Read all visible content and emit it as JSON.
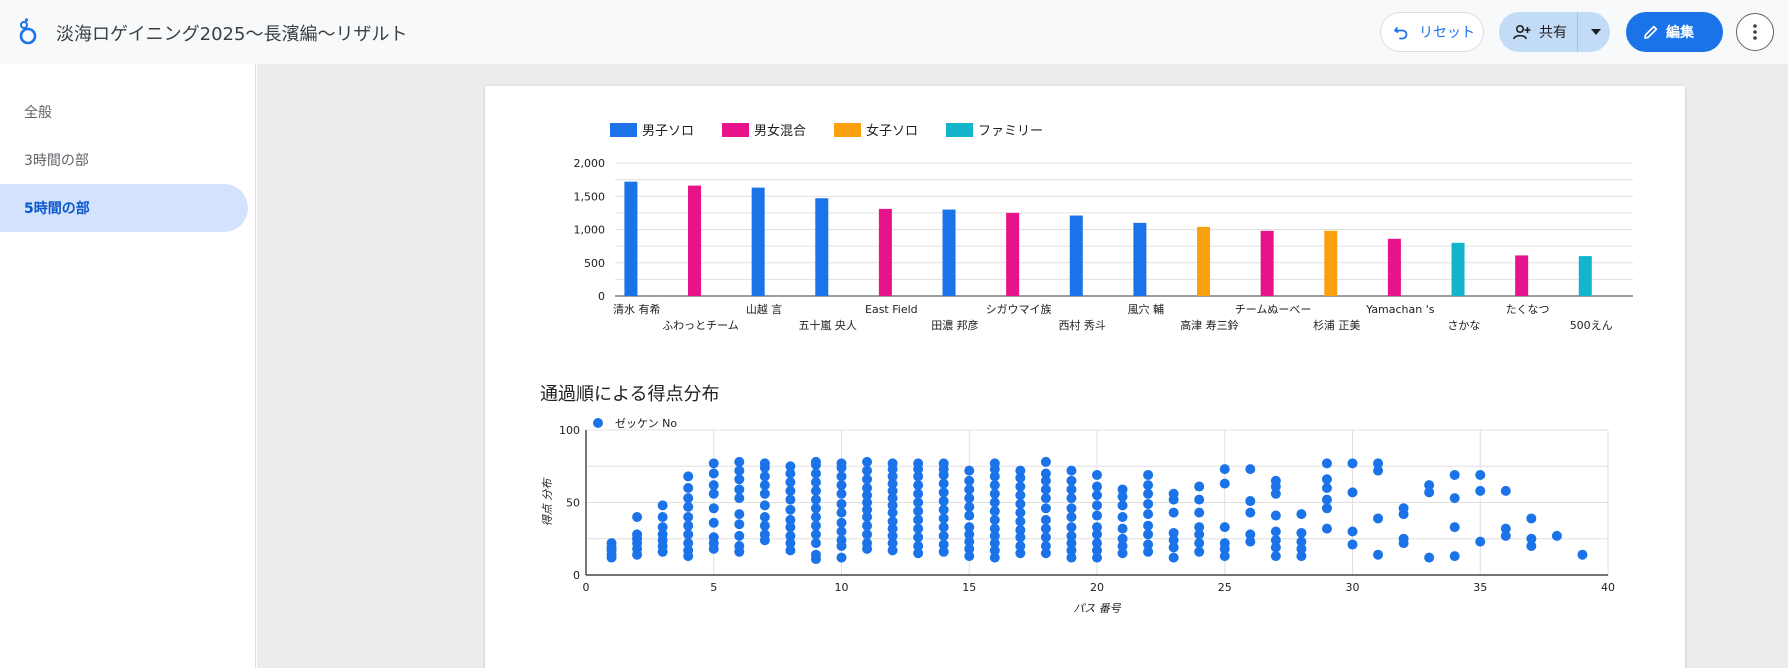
{
  "header": {
    "title": "淡海ロゲイニング2025〜長濱編〜リザルト",
    "reset_label": "リセット",
    "share_label": "共有",
    "edit_label": "編集"
  },
  "icons": {
    "logo": "looker-studio-logo-icon",
    "reset": "undo-icon",
    "share": "person-add-icon",
    "share_menu": "caret-down-icon",
    "edit": "pencil-icon",
    "more": "more-vert-icon"
  },
  "colors": {
    "accent": "#1a73e8",
    "male_solo": "#1a73e8",
    "mixed": "#e8128b",
    "female_solo": "#f9a10f",
    "family": "#12b5cb"
  },
  "sidebar": {
    "items": [
      {
        "label": "全般",
        "active": false
      },
      {
        "label": "3時間の部",
        "active": false
      },
      {
        "label": "5時間の部",
        "active": true
      }
    ]
  },
  "chart_data": [
    {
      "type": "bar",
      "legend": [
        "男子ソロ",
        "男女混合",
        "女子ソロ",
        "ファミリー"
      ],
      "legend_position": "top-left",
      "series_colors": [
        "#1a73e8",
        "#e8128b",
        "#f9a10f",
        "#12b5cb"
      ],
      "categories": [
        "清水 有希",
        "ふわっとチーム",
        "山越 言",
        "五十嵐 央人",
        "East Field",
        "田濃 邦彦",
        "シガウマイ族",
        "西村 秀斗",
        "風穴 輔",
        "高津 寿三鈴",
        "チームぬーべー",
        "杉浦 正美",
        "Yamachan 's",
        "さかな",
        "たくなつ",
        "500えん"
      ],
      "category_series": [
        0,
        1,
        0,
        0,
        1,
        0,
        1,
        0,
        0,
        2,
        1,
        2,
        1,
        3,
        1,
        3
      ],
      "values": [
        1720,
        1660,
        1630,
        1470,
        1310,
        1300,
        1250,
        1210,
        1100,
        1040,
        980,
        980,
        860,
        800,
        610,
        600
      ],
      "yticks": [
        "0",
        "500",
        "1,000",
        "1,500",
        "2,000"
      ],
      "ylim": [
        0,
        2000
      ],
      "grid": true
    },
    {
      "type": "scatter",
      "title": "通過順による得点分布",
      "legend": [
        "ゼッケン No"
      ],
      "legend_position": "top-left",
      "xlabel": "パス 番号",
      "ylabel": "得点 分布",
      "xlim": [
        0,
        40
      ],
      "ylim": [
        0,
        100
      ],
      "xticks": [
        "0",
        "5",
        "10",
        "15",
        "20",
        "25",
        "30",
        "35",
        "40"
      ],
      "yticks": [
        "0",
        "50",
        "100"
      ],
      "color": "#1a73e8",
      "grid": true,
      "columns": [
        {
          "x": 1,
          "y": [
            12,
            14,
            17,
            19,
            22
          ]
        },
        {
          "x": 2,
          "y": [
            14,
            18,
            22,
            25,
            28,
            40
          ]
        },
        {
          "x": 3,
          "y": [
            16,
            20,
            24,
            28,
            33,
            40,
            48
          ]
        },
        {
          "x": 4,
          "y": [
            13,
            17,
            22,
            28,
            34,
            40,
            47,
            53,
            60,
            68
          ]
        },
        {
          "x": 5,
          "y": [
            18,
            22,
            26,
            36,
            46,
            56,
            62,
            70,
            77
          ]
        },
        {
          "x": 6,
          "y": [
            16,
            20,
            27,
            35,
            42,
            53,
            59,
            66,
            72,
            78
          ]
        },
        {
          "x": 7,
          "y": [
            24,
            28,
            34,
            40,
            48,
            56,
            62,
            68,
            74,
            77
          ]
        },
        {
          "x": 8,
          "y": [
            17,
            22,
            27,
            33,
            38,
            45,
            52,
            58,
            64,
            70,
            75
          ]
        },
        {
          "x": 9,
          "y": [
            11,
            14,
            22,
            28,
            34,
            40,
            46,
            52,
            58,
            64,
            70,
            76,
            78
          ]
        },
        {
          "x": 10,
          "y": [
            12,
            20,
            24,
            30,
            36,
            43,
            49,
            56,
            62,
            68,
            74,
            77
          ]
        },
        {
          "x": 11,
          "y": [
            18,
            22,
            28,
            34,
            40,
            45,
            50,
            55,
            60,
            66,
            72,
            78
          ]
        },
        {
          "x": 12,
          "y": [
            17,
            22,
            27,
            32,
            37,
            43,
            48,
            53,
            58,
            63,
            68,
            73,
            77
          ]
        },
        {
          "x": 13,
          "y": [
            15,
            20,
            26,
            32,
            38,
            44,
            50,
            56,
            62,
            68,
            73,
            77
          ]
        },
        {
          "x": 14,
          "y": [
            16,
            21,
            27,
            33,
            39,
            45,
            51,
            57,
            63,
            69,
            73,
            77
          ]
        },
        {
          "x": 15,
          "y": [
            13,
            18,
            23,
            28,
            33,
            41,
            47,
            53,
            59,
            65,
            72
          ]
        },
        {
          "x": 16,
          "y": [
            12,
            17,
            22,
            27,
            32,
            38,
            44,
            50,
            56,
            62,
            68,
            73,
            77
          ]
        },
        {
          "x": 17,
          "y": [
            15,
            20,
            26,
            31,
            37,
            43,
            49,
            55,
            61,
            67,
            72
          ]
        },
        {
          "x": 18,
          "y": [
            15,
            20,
            26,
            32,
            38,
            46,
            53,
            59,
            65,
            70,
            78
          ]
        },
        {
          "x": 19,
          "y": [
            12,
            17,
            22,
            27,
            33,
            40,
            46,
            53,
            59,
            65,
            72
          ]
        },
        {
          "x": 20,
          "y": [
            12,
            17,
            22,
            28,
            33,
            41,
            48,
            55,
            61,
            69
          ]
        },
        {
          "x": 21,
          "y": [
            15,
            20,
            25,
            32,
            40,
            48,
            54,
            59
          ]
        },
        {
          "x": 22,
          "y": [
            16,
            21,
            28,
            34,
            42,
            49,
            56,
            62,
            69
          ]
        },
        {
          "x": 23,
          "y": [
            12,
            19,
            24,
            29,
            43,
            52,
            56
          ]
        },
        {
          "x": 24,
          "y": [
            16,
            22,
            28,
            33,
            43,
            52,
            61
          ]
        },
        {
          "x": 25,
          "y": [
            13,
            18,
            22,
            33,
            63,
            73
          ]
        },
        {
          "x": 26,
          "y": [
            23,
            28,
            43,
            51,
            73
          ]
        },
        {
          "x": 27,
          "y": [
            13,
            19,
            24,
            30,
            41,
            56,
            61,
            65
          ]
        },
        {
          "x": 28,
          "y": [
            13,
            18,
            23,
            29,
            42
          ]
        },
        {
          "x": 29,
          "y": [
            32,
            46,
            52,
            60,
            66,
            77
          ]
        },
        {
          "x": 30,
          "y": [
            21,
            30,
            57,
            77
          ]
        },
        {
          "x": 31,
          "y": [
            14,
            39,
            72,
            77
          ]
        },
        {
          "x": 32,
          "y": [
            22,
            25,
            42,
            46
          ]
        },
        {
          "x": 33,
          "y": [
            12,
            57,
            62
          ]
        },
        {
          "x": 34,
          "y": [
            13,
            33,
            53,
            69
          ]
        },
        {
          "x": 35,
          "y": [
            23,
            58,
            69
          ]
        },
        {
          "x": 36,
          "y": [
            27,
            32,
            58
          ]
        },
        {
          "x": 37,
          "y": [
            20,
            25,
            39
          ]
        },
        {
          "x": 38,
          "y": [
            27
          ]
        },
        {
          "x": 39,
          "y": [
            14
          ]
        }
      ]
    }
  ]
}
